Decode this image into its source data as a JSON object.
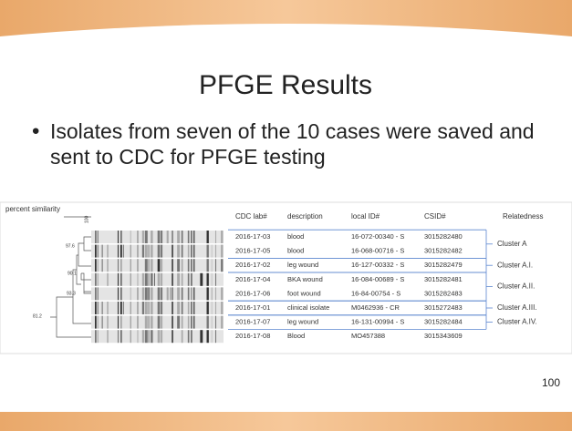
{
  "title": "PFGE Results",
  "bullet": "Isolates from seven of the 10 cases were saved and sent to CDC for PFGE testing",
  "figure": {
    "axis_label": "percent similarity",
    "dendrogram_labels": [
      "100",
      "97.6",
      "90.1",
      "93.3",
      "81.2"
    ],
    "headers": [
      "CDC lab#",
      "description",
      "local ID#",
      "CSID#",
      "Relatedness"
    ],
    "rows": [
      [
        "2016-17-03",
        "blood",
        "16-072-00340 - S",
        "3015282480"
      ],
      [
        "2016-17-05",
        "blood",
        "16-068-00716 - S",
        "3015282482"
      ],
      [
        "2016-17-02",
        "leg wound",
        "16-127-00332 - S",
        "3015282479"
      ],
      [
        "2016-17-04",
        "BKA wound",
        "16-084-00689 - S",
        "3015282481"
      ],
      [
        "2016-17-06",
        "foot wound",
        "16-84-00754 - S",
        "3015282483"
      ],
      [
        "2016-17-01",
        "clinical isolate",
        "M0462936 - CR",
        "3015272483"
      ],
      [
        "2016-17-07",
        "leg wound",
        "16-131-00994 - S",
        "3015282484"
      ],
      [
        "2016-17-08",
        "Blood",
        "MO457388",
        "3015343609"
      ]
    ],
    "clusters": [
      "Cluster A",
      "Cluster A.I.",
      "Cluster A.II.",
      "Cluster A.III.",
      "Cluster A.IV."
    ]
  },
  "page_number": "100"
}
